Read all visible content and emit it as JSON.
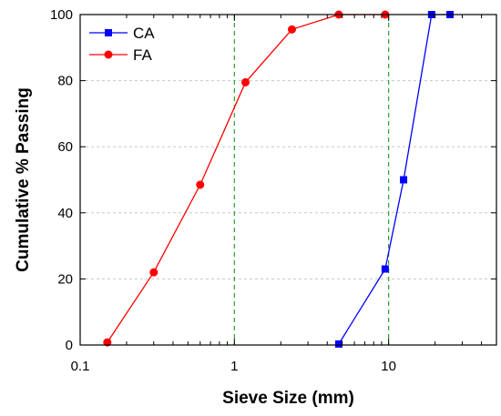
{
  "chart_data": {
    "type": "line",
    "title": "",
    "xlabel": "Sieve Size (mm)",
    "ylabel": "Cumulative % Passing",
    "xscale": "log",
    "xlim": [
      0.1,
      50
    ],
    "ylim": [
      0,
      100
    ],
    "xticks": [
      0.1,
      1,
      10
    ],
    "xtick_labels": [
      "0.1",
      "1",
      "10"
    ],
    "yticks": [
      0,
      20,
      40,
      60,
      80,
      100
    ],
    "ytick_labels": [
      "0",
      "20",
      "40",
      "60",
      "80",
      "100"
    ],
    "grid": "horizontal dashed gray lines; vertical dashed green reference lines",
    "reference_lines_x": [
      1,
      10
    ],
    "reference_line_color": "#2ca02c",
    "legend_position": "top-left",
    "series": [
      {
        "name": "CA",
        "color": "#0000ff",
        "marker": "square",
        "x": [
          4.75,
          9.5,
          12.5,
          19,
          25
        ],
        "y": [
          0.3,
          23,
          50,
          100,
          100
        ]
      },
      {
        "name": "FA",
        "color": "#ff0000",
        "marker": "circle",
        "x": [
          0.15,
          0.3,
          0.6,
          1.18,
          2.36,
          4.75,
          9.5
        ],
        "y": [
          0.8,
          22,
          48.5,
          79.5,
          95.5,
          100,
          100
        ]
      }
    ]
  }
}
